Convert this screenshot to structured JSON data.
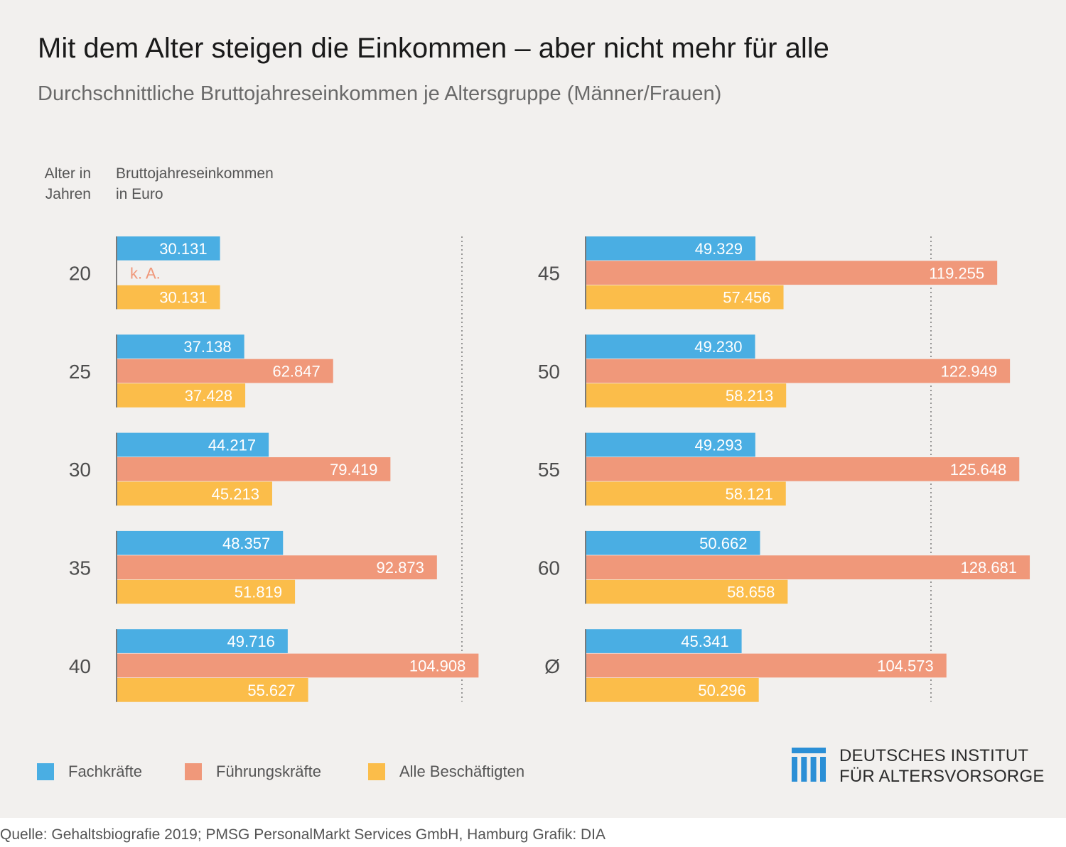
{
  "title": "Mit dem Alter steigen die Einkommen – aber nicht mehr für alle",
  "subtitle": "Durchschnittliche Bruttojahreseinkommen je Altersgruppe (Männer/Frauen)",
  "headers": {
    "age_line1": "Alter in",
    "age_line2": "Jahren",
    "income_line1": "Bruttojahreseinkommen",
    "income_line2": "in Euro"
  },
  "legend": [
    {
      "label": "Fachkräfte",
      "color": "#4aaee3"
    },
    {
      "label": "Führungskräfte",
      "color": "#f0987a"
    },
    {
      "label": "Alle Beschäftigten",
      "color": "#fbbd4a"
    }
  ],
  "logo": {
    "line1": "DEUTSCHES INSTITUT",
    "line2": "FÜR ALTERSVORSORGE",
    "color": "#2b8fd6"
  },
  "footer": "Quelle: Gehaltsbiografie 2019; PMSG PersonalMarkt Services GmbH, Hamburg  Grafik: DIA",
  "chart_data": {
    "type": "bar",
    "orientation": "horizontal",
    "series_names": [
      "Fachkräfte",
      "Führungskräfte",
      "Alle Beschäftigten"
    ],
    "colors": [
      "#4aaee3",
      "#f0987a",
      "#fbbd4a"
    ],
    "xlim": [
      0,
      130000
    ],
    "panels": [
      {
        "groups": [
          {
            "label": "20",
            "values": [
              30131,
              null,
              30131
            ],
            "value_labels": [
              "30.131",
              "k. A.",
              "30.131"
            ]
          },
          {
            "label": "25",
            "values": [
              37138,
              62847,
              37428
            ],
            "value_labels": [
              "37.138",
              "62.847",
              "37.428"
            ]
          },
          {
            "label": "30",
            "values": [
              44217,
              79419,
              45213
            ],
            "value_labels": [
              "44.217",
              "79.419",
              "45.213"
            ]
          },
          {
            "label": "35",
            "values": [
              48357,
              92873,
              51819
            ],
            "value_labels": [
              "48.357",
              "92.873",
              "51.819"
            ]
          },
          {
            "label": "40",
            "values": [
              49716,
              104908,
              55627
            ],
            "value_labels": [
              "49.716",
              "104.908",
              "55.627"
            ]
          }
        ]
      },
      {
        "groups": [
          {
            "label": "45",
            "values": [
              49329,
              119255,
              57456
            ],
            "value_labels": [
              "49.329",
              "119.255",
              "57.456"
            ]
          },
          {
            "label": "50",
            "values": [
              49230,
              122949,
              58213
            ],
            "value_labels": [
              "49.230",
              "122.949",
              "58.213"
            ]
          },
          {
            "label": "55",
            "values": [
              49293,
              125648,
              58121
            ],
            "value_labels": [
              "49.293",
              "125.648",
              "58.121"
            ]
          },
          {
            "label": "60",
            "values": [
              50662,
              128681,
              58658
            ],
            "value_labels": [
              "50.662",
              "128.681",
              "58.658"
            ]
          },
          {
            "label": "Ø",
            "values": [
              45341,
              104573,
              50296
            ],
            "value_labels": [
              "45.341",
              "104.573",
              "50.296"
            ]
          }
        ]
      }
    ],
    "reference_line": 100000
  }
}
